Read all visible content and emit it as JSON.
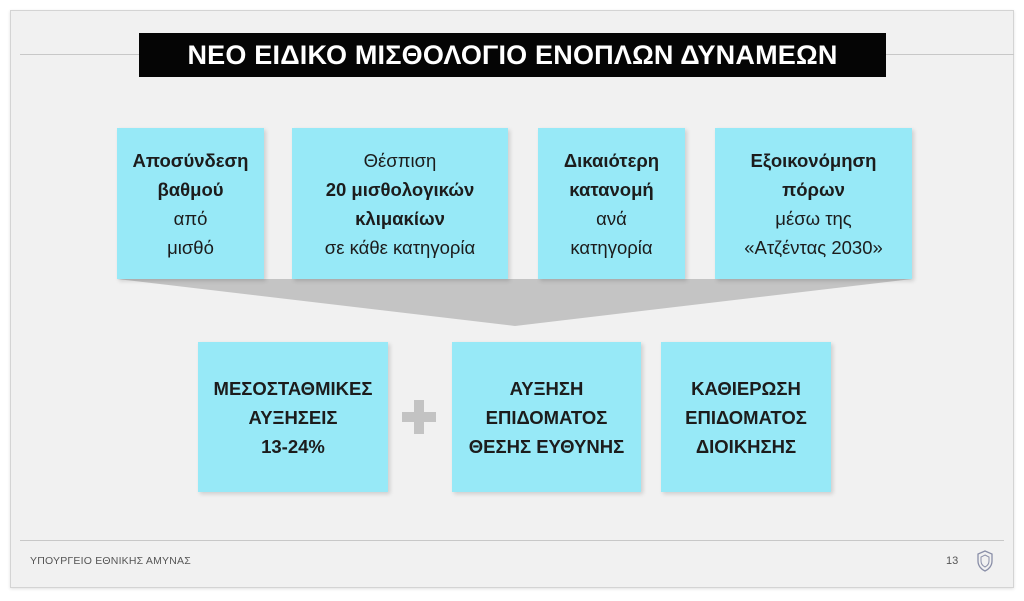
{
  "title": "ΝΕΟ ΕΙΔΙΚΟ ΜΙΣΘΟΛΟΓΙΟ ΕΝΟΠΛΩΝ ΔΥΝΑΜΕΩΝ",
  "top_boxes": [
    {
      "lines": [
        "Αποσύνδεση",
        "βαθμού",
        "από",
        "μισθό"
      ]
    },
    {
      "lines": [
        "Θέσπιση",
        "20 μισθολογικών",
        "κλιμακίων",
        "σε κάθε κατηγορία"
      ]
    },
    {
      "lines": [
        "Δικαιότερη",
        "κατανομή",
        "ανά",
        "κατηγορία"
      ]
    },
    {
      "lines": [
        "Εξοικονόμηση",
        "πόρων",
        "μέσω της",
        "«Ατζέντας 2030»"
      ]
    }
  ],
  "bottom_boxes": [
    {
      "lines": [
        "ΜΕΣΟΣΤΑΘΜΙΚΕΣ",
        "ΑΥΞΗΣΕΙΣ",
        "13-24%"
      ]
    },
    {
      "lines": [
        "ΑΥΞΗΣΗ",
        "ΕΠΙΔΟΜΑΤΟΣ",
        "ΘΕΣΗΣ ΕΥΘΥΝΗΣ"
      ]
    },
    {
      "lines": [
        "ΚΑΘΙΕΡΩΣΗ",
        "ΕΠΙΔΟΜΑΤΟΣ",
        "ΔΙΟΙΚΗΣΗΣ"
      ]
    }
  ],
  "footer": {
    "ministry": "ΥΠΟΥΡΓΕΙΟ ΕΘΝΙΚΗΣ ΑΜΥΝΑΣ",
    "page_number": "13"
  },
  "colors": {
    "box_fill": "#97e9f7",
    "funnel": "#c4c4c4",
    "title_bg": "#050505",
    "slide_bg": "#f1f1f1"
  },
  "icons": {
    "plus": "plus-icon",
    "logo": "ministry-crest-icon"
  }
}
